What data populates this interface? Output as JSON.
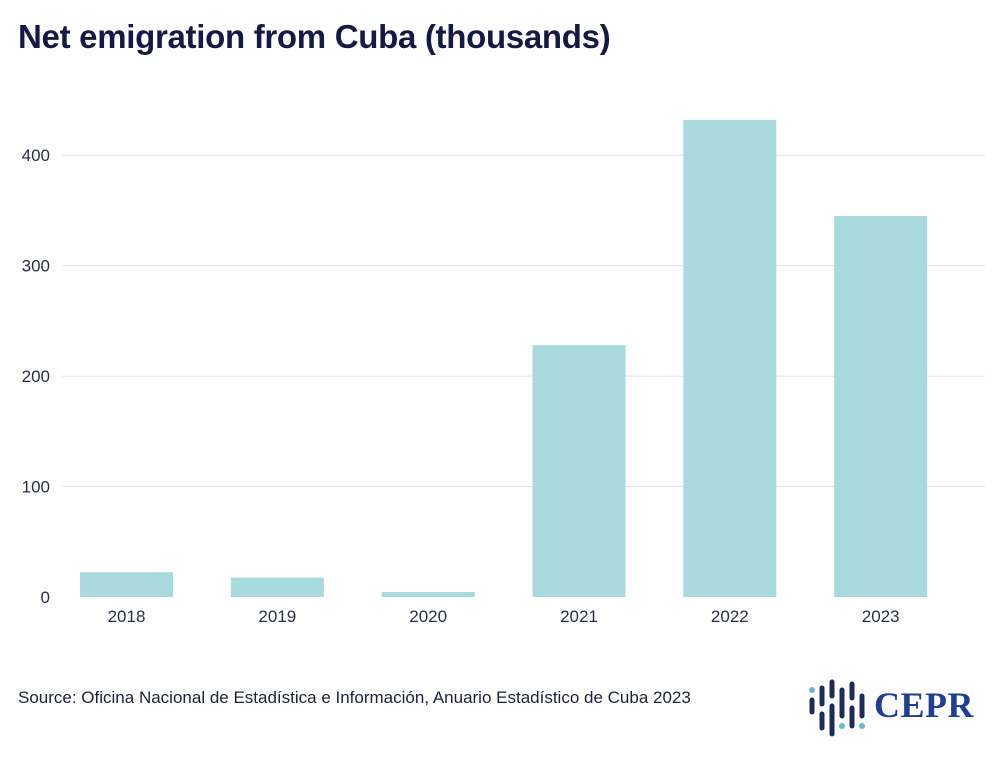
{
  "chart_data": {
    "type": "bar",
    "title": "Net emigration from Cuba (thousands)",
    "categories": [
      "2018",
      "2019",
      "2020",
      "2021",
      "2022",
      "2023"
    ],
    "values": [
      22.5,
      17.5,
      4.5,
      228,
      432,
      345
    ],
    "yticks": [
      0,
      100,
      200,
      300,
      400
    ],
    "ylim": [
      0,
      450
    ],
    "xlabel": "",
    "ylabel": "",
    "grid": true,
    "bar_color": "#a8dadd"
  },
  "source": "Source: Oficina Nacional de Estadística e Información, Anuario Estadístico de Cuba 2023",
  "logo": {
    "text": "CEPR",
    "color": "#1f3f95"
  }
}
